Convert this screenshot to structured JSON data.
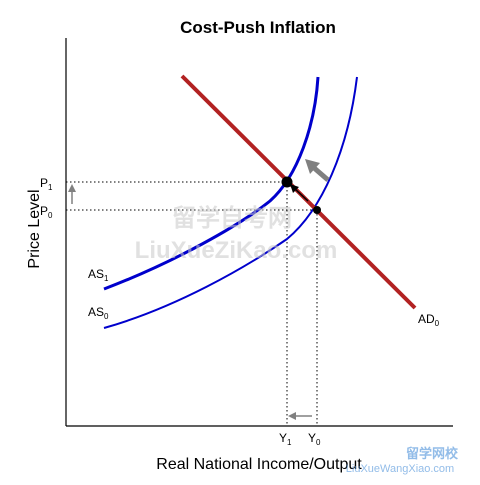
{
  "title": "Cost-Push Inflation",
  "xlabel": "Real National Income/Output",
  "ylabel": "Price Level",
  "curves": {
    "as1": {
      "base": "AS",
      "sub": "1",
      "color": "#0000cc"
    },
    "as0": {
      "base": "AS",
      "sub": "0",
      "color": "#0000cc"
    },
    "ad0": {
      "base": "AD",
      "sub": "0",
      "color": "#b22222"
    }
  },
  "ticks": {
    "p1": {
      "base": "P",
      "sub": "1"
    },
    "p0": {
      "base": "P",
      "sub": "0"
    },
    "y1": {
      "base": "Y",
      "sub": "1"
    },
    "y0": {
      "base": "Y",
      "sub": "0"
    }
  },
  "watermark": {
    "line1": "留学自考网",
    "line2": "LiuXueZiKao.com",
    "corner_line1": "留学网校",
    "corner_line2": "LiuXueWangXiao.com"
  },
  "colors": {
    "axis": "#000000",
    "arrow": "#808080",
    "point": "#000000",
    "guide": "#000000"
  }
}
